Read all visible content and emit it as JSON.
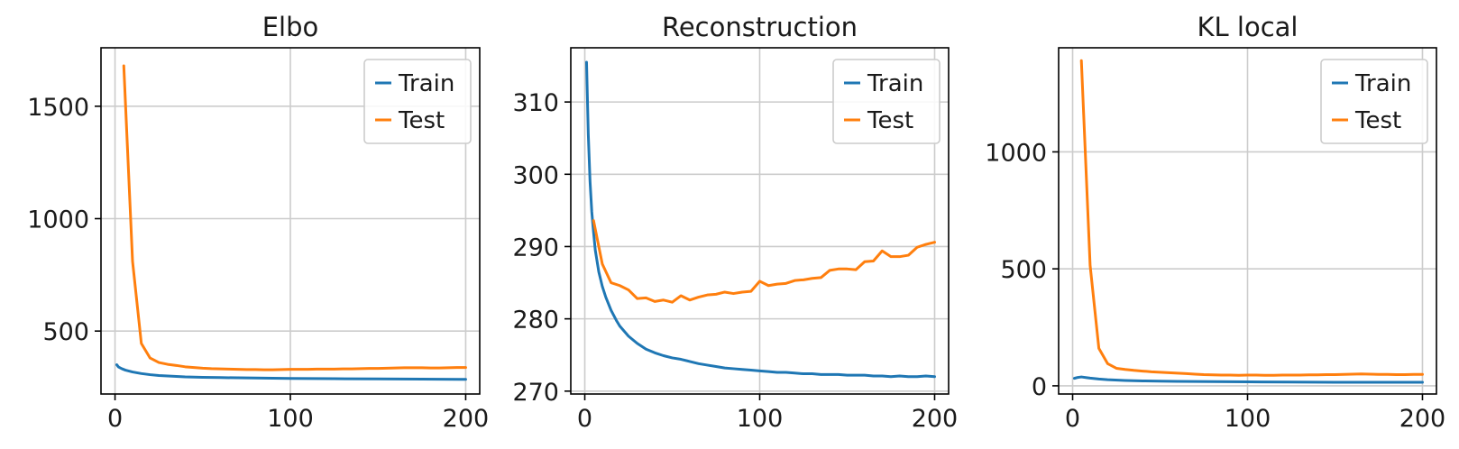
{
  "chart_data": [
    {
      "type": "line",
      "title": "Elbo",
      "xlabel": "",
      "ylabel": "",
      "xlim": [
        -8,
        208
      ],
      "ylim": [
        220,
        1760
      ],
      "xticks": [
        0,
        100,
        200
      ],
      "xtick_labels": [
        "0",
        "100",
        "200"
      ],
      "yticks": [
        500,
        1000,
        1500
      ],
      "ytick_labels": [
        "500",
        "1000",
        "1500"
      ],
      "grid": true,
      "legend": "top-right",
      "series": [
        {
          "name": "Train",
          "color": "#1f77b4",
          "x": [
            1,
            2,
            4,
            6,
            8,
            10,
            15,
            20,
            25,
            30,
            40,
            50,
            60,
            80,
            100,
            125,
            150,
            175,
            200
          ],
          "y": [
            350,
            340,
            332,
            326,
            322,
            318,
            311,
            306,
            302,
            300,
            296,
            294,
            293,
            291,
            289,
            288,
            287,
            286,
            285
          ]
        },
        {
          "name": "Test",
          "color": "#ff7f0e",
          "x": [
            5,
            10,
            15,
            20,
            25,
            30,
            35,
            40,
            45,
            50,
            55,
            60,
            65,
            70,
            75,
            80,
            85,
            90,
            95,
            100,
            105,
            110,
            115,
            120,
            125,
            130,
            135,
            140,
            145,
            150,
            155,
            160,
            165,
            170,
            175,
            180,
            185,
            190,
            195,
            200
          ],
          "y": [
            1680,
            810,
            445,
            380,
            360,
            352,
            347,
            341,
            338,
            335,
            333,
            332,
            331,
            330,
            329,
            329,
            328,
            328,
            329,
            330,
            330,
            330,
            331,
            331,
            331,
            332,
            332,
            333,
            334,
            334,
            335,
            336,
            337,
            337,
            337,
            336,
            336,
            337,
            338,
            338
          ]
        }
      ]
    },
    {
      "type": "line",
      "title": "Reconstruction",
      "xlabel": "",
      "ylabel": "",
      "xlim": [
        -8,
        208
      ],
      "ylim": [
        269.6,
        317.5
      ],
      "xticks": [
        0,
        100,
        200
      ],
      "xtick_labels": [
        "0",
        "100",
        "200"
      ],
      "yticks": [
        270,
        280,
        290,
        300,
        310
      ],
      "ytick_labels": [
        "270",
        "280",
        "290",
        "300",
        "310"
      ],
      "grid": true,
      "legend": "top-right",
      "series": [
        {
          "name": "Train",
          "color": "#1f77b4",
          "x": [
            1,
            2,
            3,
            4,
            5,
            6,
            8,
            10,
            12,
            15,
            18,
            20,
            25,
            30,
            35,
            40,
            45,
            50,
            55,
            60,
            65,
            70,
            75,
            80,
            85,
            90,
            95,
            100,
            105,
            110,
            115,
            120,
            125,
            130,
            135,
            140,
            145,
            150,
            155,
            160,
            165,
            170,
            175,
            180,
            185,
            190,
            195,
            200
          ],
          "y": [
            315.5,
            305.5,
            299.0,
            294.8,
            292.0,
            289.5,
            286.5,
            284.5,
            283.0,
            281.2,
            279.8,
            279.0,
            277.6,
            276.6,
            275.8,
            275.3,
            274.9,
            274.6,
            274.4,
            274.1,
            273.8,
            273.6,
            273.4,
            273.2,
            273.1,
            273.0,
            272.9,
            272.8,
            272.7,
            272.6,
            272.6,
            272.5,
            272.4,
            272.4,
            272.3,
            272.3,
            272.3,
            272.2,
            272.2,
            272.2,
            272.1,
            272.1,
            272.0,
            272.1,
            272.0,
            272.0,
            272.1,
            272.0
          ]
        },
        {
          "name": "Test",
          "color": "#ff7f0e",
          "x": [
            5,
            10,
            15,
            20,
            25,
            30,
            35,
            40,
            45,
            50,
            55,
            60,
            65,
            70,
            75,
            80,
            85,
            90,
            95,
            100,
            105,
            110,
            115,
            120,
            125,
            130,
            135,
            140,
            145,
            150,
            155,
            160,
            165,
            170,
            175,
            180,
            185,
            190,
            195,
            200
          ],
          "y": [
            293.6,
            287.6,
            285.0,
            284.6,
            284.0,
            282.8,
            282.9,
            282.4,
            282.6,
            282.3,
            283.2,
            282.6,
            283.0,
            283.3,
            283.4,
            283.7,
            283.5,
            283.7,
            283.8,
            285.2,
            284.6,
            284.8,
            284.9,
            285.3,
            285.4,
            285.6,
            285.7,
            286.7,
            286.9,
            286.9,
            286.8,
            287.9,
            288.0,
            289.4,
            288.6,
            288.6,
            288.8,
            289.9,
            290.3,
            290.6
          ]
        }
      ]
    },
    {
      "type": "line",
      "title": "KL local",
      "xlabel": "",
      "ylabel": "",
      "xlim": [
        -8,
        208
      ],
      "ylim": [
        -35,
        1445
      ],
      "xticks": [
        0,
        100,
        200
      ],
      "xtick_labels": [
        "0",
        "100",
        "200"
      ],
      "yticks": [
        0,
        500,
        1000
      ],
      "ytick_labels": [
        "0",
        "500",
        "1000"
      ],
      "grid": true,
      "legend": "top-right",
      "series": [
        {
          "name": "Train",
          "color": "#1f77b4",
          "x": [
            1,
            3,
            5,
            8,
            10,
            15,
            20,
            30,
            40,
            50,
            60,
            80,
            100,
            125,
            150,
            175,
            200
          ],
          "y": [
            32,
            36,
            38,
            35,
            33,
            29,
            26,
            23,
            21,
            20,
            19,
            18,
            17,
            16,
            15,
            15,
            15
          ]
        },
        {
          "name": "Test",
          "color": "#ff7f0e",
          "x": [
            5,
            10,
            15,
            20,
            25,
            30,
            35,
            40,
            45,
            50,
            55,
            60,
            65,
            70,
            75,
            80,
            85,
            90,
            95,
            100,
            105,
            110,
            115,
            120,
            125,
            130,
            135,
            140,
            145,
            150,
            155,
            160,
            165,
            170,
            175,
            180,
            185,
            190,
            195,
            200
          ],
          "y": [
            1390,
            515,
            160,
            95,
            75,
            70,
            66,
            63,
            60,
            58,
            56,
            54,
            52,
            50,
            48,
            47,
            46,
            46,
            45,
            46,
            46,
            45,
            45,
            46,
            46,
            46,
            47,
            47,
            48,
            48,
            49,
            50,
            51,
            50,
            49,
            49,
            48,
            48,
            49,
            49
          ]
        }
      ]
    }
  ]
}
